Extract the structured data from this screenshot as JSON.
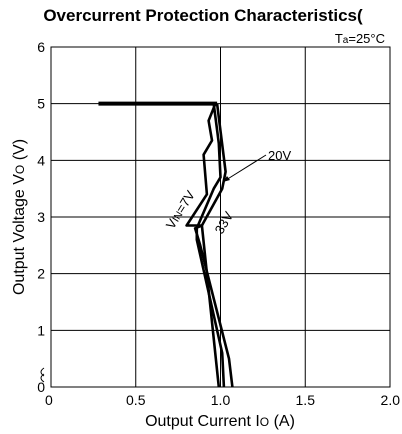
{
  "chart_data": {
    "type": "line",
    "title": "Overcurrent Protection Characteristics(",
    "condition": {
      "main": "T",
      "sub": "a",
      "rest": "=25°C"
    },
    "xlabel": {
      "main": "Output Current I",
      "sub": "O",
      "rest": " (A)"
    },
    "ylabel": {
      "main": "Output Voltage V",
      "sub": "O",
      "rest": " (V)"
    },
    "xlim": [
      0,
      2.0
    ],
    "ylim": [
      0,
      6
    ],
    "xticks": [
      "0",
      "0.5",
      "1.0",
      "1.5",
      "2.0"
    ],
    "yticks": [
      "0",
      "1",
      "2",
      "3",
      "4",
      "5",
      "6"
    ],
    "grid": true,
    "horizontal_segment": {
      "x": [
        0.28,
        0.98
      ],
      "y": 5.0
    },
    "series": [
      {
        "label": {
          "main": "V",
          "sub": "IN",
          "rest": "=7V"
        },
        "x": [
          0.97,
          0.93,
          0.95,
          0.9,
          0.92,
          0.8,
          0.89,
          0.99
        ],
        "y": [
          5.0,
          4.7,
          4.35,
          4.1,
          3.4,
          2.85,
          2.85,
          0.0
        ]
      },
      {
        "label": {
          "main": "20V",
          "sub": "",
          "rest": ""
        },
        "x": [
          0.96,
          0.99,
          1.0,
          0.96,
          0.86,
          0.86,
          1.01,
          1.02
        ],
        "y": [
          5.0,
          4.3,
          3.7,
          3.5,
          2.8,
          2.6,
          0.6,
          0.0
        ]
      },
      {
        "label": {
          "main": "33V",
          "sub": "",
          "rest": ""
        },
        "x": [
          0.98,
          1.03,
          1.01,
          0.89,
          0.85,
          0.88,
          1.05,
          1.07
        ],
        "y": [
          5.0,
          3.8,
          3.5,
          2.85,
          2.8,
          2.5,
          0.5,
          0.0
        ]
      }
    ]
  }
}
